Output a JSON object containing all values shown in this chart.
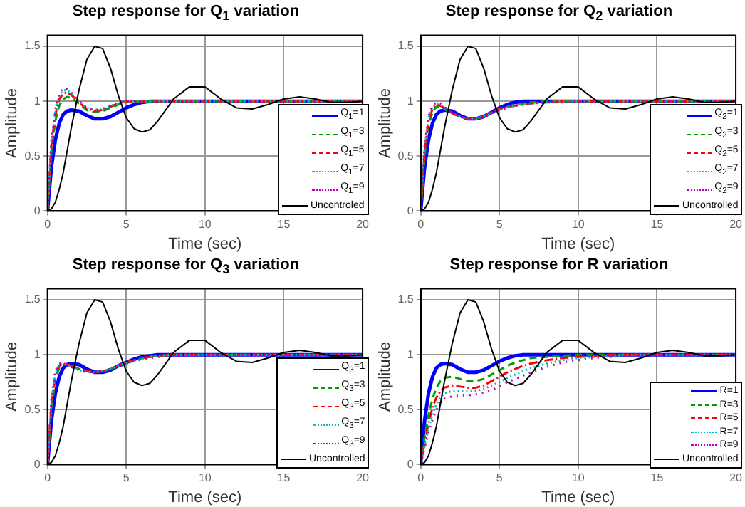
{
  "chart_data": [
    {
      "type": "line",
      "title": "Step response for Q$_{1}$ variation",
      "xlabel": "Time (sec)",
      "ylabel": "Amplitude",
      "x": [
        0,
        0.25,
        0.5,
        0.75,
        1,
        1.25,
        1.5,
        2,
        2.5,
        3,
        3.5,
        4,
        4.5,
        5,
        5.5,
        6,
        6.5,
        7,
        8,
        9,
        10,
        11,
        12,
        13,
        14,
        15,
        16,
        17,
        18,
        19,
        20
      ],
      "xlim": [
        0,
        20
      ],
      "xticks": [
        0,
        5,
        10,
        15,
        20
      ],
      "ylim": [
        0,
        1.6
      ],
      "yticks": [
        0,
        0.5,
        1,
        1.5
      ],
      "grid": true,
      "legend": "bottom right",
      "marker": "none",
      "series": [
        {
          "name": "Q$_{1}$=1",
          "color": "#0000ff",
          "line_style": "solid",
          "values": [
            0,
            0.4,
            0.65,
            0.8,
            0.88,
            0.91,
            0.92,
            0.91,
            0.87,
            0.84,
            0.84,
            0.86,
            0.9,
            0.94,
            0.97,
            0.99,
            1,
            1,
            1,
            1,
            1,
            1,
            1,
            1,
            1,
            1,
            1,
            1,
            1,
            1,
            1
          ]
        },
        {
          "name": "Q$_{1}$=3",
          "color": "#00a000",
          "line_style": "dashed",
          "values": [
            0,
            0.55,
            0.82,
            0.96,
            1.02,
            1.04,
            1.03,
            0.98,
            0.92,
            0.9,
            0.91,
            0.94,
            0.97,
            0.99,
            1,
            1,
            1,
            1,
            1,
            1,
            1,
            1,
            1,
            1,
            1,
            1,
            1,
            1,
            1,
            1,
            1
          ]
        },
        {
          "name": "Q$_{1}$=5",
          "color": "#ff0000",
          "line_style": "dashdot",
          "values": [
            0,
            0.6,
            0.88,
            1.02,
            1.07,
            1.08,
            1.06,
            0.99,
            0.93,
            0.91,
            0.92,
            0.95,
            0.98,
            1,
            1,
            1,
            1,
            1,
            1,
            1,
            1,
            1,
            1,
            1,
            1,
            1,
            1,
            1,
            1,
            1,
            1
          ]
        },
        {
          "name": "Q$_{1}$=7",
          "color": "#00bfbf",
          "line_style": "dotted",
          "values": [
            0,
            0.63,
            0.91,
            1.05,
            1.1,
            1.1,
            1.07,
            1,
            0.94,
            0.92,
            0.93,
            0.96,
            0.98,
            1,
            1,
            1,
            1,
            1,
            1,
            1,
            1,
            1,
            1,
            1,
            1,
            1,
            1,
            1,
            1,
            1,
            1
          ]
        },
        {
          "name": "Q$_{1}$=9",
          "color": "#bf00bf",
          "line_style": "dotted",
          "values": [
            0,
            0.65,
            0.93,
            1.07,
            1.12,
            1.11,
            1.08,
            1,
            0.94,
            0.92,
            0.93,
            0.96,
            0.99,
            1,
            1,
            1,
            1,
            1,
            1,
            1,
            1,
            1,
            1,
            1,
            1,
            1,
            1,
            1,
            1,
            1,
            1
          ]
        },
        {
          "name": "Uncontroled",
          "color": "#000000",
          "line_style": "solid",
          "values": [
            0,
            0.02,
            0.08,
            0.2,
            0.35,
            0.55,
            0.75,
            1.1,
            1.38,
            1.5,
            1.48,
            1.3,
            1.05,
            0.85,
            0.75,
            0.72,
            0.74,
            0.82,
            1.02,
            1.13,
            1.13,
            1.02,
            0.94,
            0.93,
            0.97,
            1.02,
            1.04,
            1.02,
            0.99,
            0.99,
            1
          ]
        }
      ]
    },
    {
      "type": "line",
      "title": "Step response for Q$_{2}$ variation",
      "xlabel": "Time (sec)",
      "ylabel": "Amplitude",
      "x": [
        0,
        0.25,
        0.5,
        0.75,
        1,
        1.25,
        1.5,
        2,
        2.5,
        3,
        3.5,
        4,
        4.5,
        5,
        5.5,
        6,
        6.5,
        7,
        8,
        9,
        10,
        11,
        12,
        13,
        14,
        15,
        16,
        17,
        18,
        19,
        20
      ],
      "xlim": [
        0,
        20
      ],
      "xticks": [
        0,
        5,
        10,
        15,
        20
      ],
      "ylim": [
        0,
        1.6
      ],
      "yticks": [
        0,
        0.5,
        1,
        1.5
      ],
      "grid": true,
      "legend": "bottom right",
      "marker": "none",
      "series": [
        {
          "name": "Q$_{2}$=1",
          "color": "#0000ff",
          "line_style": "solid",
          "values": [
            0,
            0.4,
            0.65,
            0.8,
            0.88,
            0.91,
            0.92,
            0.91,
            0.87,
            0.84,
            0.84,
            0.86,
            0.9,
            0.94,
            0.97,
            0.99,
            1,
            1,
            1,
            1,
            1,
            1,
            1,
            1,
            1,
            1,
            1,
            1,
            1,
            1,
            1
          ]
        },
        {
          "name": "Q$_{2}$=3",
          "color": "#00a000",
          "line_style": "dashed",
          "values": [
            0,
            0.5,
            0.78,
            0.9,
            0.95,
            0.95,
            0.93,
            0.89,
            0.86,
            0.84,
            0.84,
            0.86,
            0.9,
            0.93,
            0.95,
            0.97,
            0.98,
            0.99,
            1,
            1,
            1,
            1,
            1,
            1,
            1,
            1,
            1,
            1,
            1,
            1,
            1
          ]
        },
        {
          "name": "Q$_{2}$=5",
          "color": "#ff0000",
          "line_style": "dashdot",
          "values": [
            0,
            0.55,
            0.82,
            0.93,
            0.97,
            0.96,
            0.94,
            0.89,
            0.86,
            0.84,
            0.84,
            0.86,
            0.9,
            0.93,
            0.95,
            0.96,
            0.97,
            0.98,
            0.99,
            1,
            1,
            1,
            1,
            1,
            1,
            1,
            1,
            1,
            1,
            1,
            1
          ]
        },
        {
          "name": "Q$_{2}$=7",
          "color": "#00bfbf",
          "line_style": "dotted",
          "values": [
            0,
            0.58,
            0.85,
            0.95,
            0.98,
            0.97,
            0.94,
            0.89,
            0.86,
            0.84,
            0.84,
            0.86,
            0.89,
            0.92,
            0.94,
            0.96,
            0.97,
            0.98,
            0.99,
            1,
            1,
            1,
            1,
            1,
            1,
            1,
            1,
            1,
            1,
            1,
            1
          ]
        },
        {
          "name": "Q$_{2}$=9",
          "color": "#bf00bf",
          "line_style": "dotted",
          "values": [
            0,
            0.6,
            0.87,
            0.96,
            0.99,
            0.98,
            0.95,
            0.89,
            0.86,
            0.84,
            0.84,
            0.85,
            0.89,
            0.92,
            0.94,
            0.96,
            0.97,
            0.98,
            0.99,
            0.99,
            1,
            1,
            1,
            1,
            1,
            1,
            1,
            1,
            1,
            1,
            1
          ]
        },
        {
          "name": "Uncontrolled",
          "color": "#000000",
          "line_style": "solid",
          "values": [
            0,
            0.02,
            0.08,
            0.2,
            0.35,
            0.55,
            0.75,
            1.1,
            1.38,
            1.5,
            1.48,
            1.3,
            1.05,
            0.85,
            0.75,
            0.72,
            0.74,
            0.82,
            1.02,
            1.13,
            1.13,
            1.02,
            0.94,
            0.93,
            0.97,
            1.02,
            1.04,
            1.02,
            0.99,
            0.99,
            1
          ]
        }
      ]
    },
    {
      "type": "line",
      "title": "Step response for Q$_{3}$ variation",
      "xlabel": "Time (sec)",
      "ylabel": "Amplitude",
      "x": [
        0,
        0.25,
        0.5,
        0.75,
        1,
        1.25,
        1.5,
        2,
        2.5,
        3,
        3.5,
        4,
        4.5,
        5,
        5.5,
        6,
        6.5,
        7,
        8,
        9,
        10,
        11,
        12,
        13,
        14,
        15,
        16,
        17,
        18,
        19,
        20
      ],
      "xlim": [
        0,
        20
      ],
      "xticks": [
        0,
        5,
        10,
        15,
        20
      ],
      "ylim": [
        0,
        1.6
      ],
      "yticks": [
        0,
        0.5,
        1,
        1.5
      ],
      "grid": true,
      "legend": "bottom right",
      "marker": "none",
      "series": [
        {
          "name": "Q$_{3}$=1",
          "color": "#0000ff",
          "line_style": "solid",
          "values": [
            0,
            0.4,
            0.65,
            0.8,
            0.88,
            0.91,
            0.92,
            0.91,
            0.87,
            0.84,
            0.84,
            0.86,
            0.9,
            0.93,
            0.96,
            0.98,
            0.99,
            1,
            1,
            1,
            1,
            1,
            1,
            1,
            1,
            1,
            1,
            1,
            1,
            1,
            1
          ]
        },
        {
          "name": "Q$_{3}$=3",
          "color": "#00a000",
          "line_style": "dashed",
          "values": [
            0,
            0.5,
            0.78,
            0.88,
            0.91,
            0.91,
            0.9,
            0.87,
            0.85,
            0.84,
            0.85,
            0.87,
            0.9,
            0.93,
            0.95,
            0.97,
            0.98,
            0.99,
            1,
            1,
            1,
            1,
            1,
            1,
            1,
            1,
            1,
            1,
            1,
            1,
            1
          ]
        },
        {
          "name": "Q$_{3}$=5",
          "color": "#ff0000",
          "line_style": "dashdot",
          "values": [
            0,
            0.55,
            0.82,
            0.9,
            0.92,
            0.91,
            0.9,
            0.87,
            0.85,
            0.84,
            0.85,
            0.87,
            0.9,
            0.93,
            0.95,
            0.97,
            0.98,
            0.99,
            1,
            1,
            1,
            1,
            1,
            1,
            1,
            1,
            1,
            1,
            1,
            1,
            1
          ]
        },
        {
          "name": "Q$_{3}$=7",
          "color": "#00bfbf",
          "line_style": "dotted",
          "values": [
            0,
            0.58,
            0.84,
            0.91,
            0.92,
            0.91,
            0.89,
            0.86,
            0.84,
            0.84,
            0.85,
            0.87,
            0.9,
            0.92,
            0.94,
            0.96,
            0.98,
            0.99,
            1,
            1,
            1,
            1,
            1,
            1,
            1,
            1,
            1,
            1,
            1,
            1,
            1
          ]
        },
        {
          "name": "Q$_{3}$=9",
          "color": "#bf00bf",
          "line_style": "dotted",
          "values": [
            0,
            0.6,
            0.86,
            0.92,
            0.92,
            0.91,
            0.89,
            0.86,
            0.84,
            0.84,
            0.85,
            0.87,
            0.89,
            0.92,
            0.94,
            0.96,
            0.97,
            0.98,
            0.99,
            1,
            1,
            1,
            1,
            1,
            1,
            1,
            1,
            1,
            1,
            1,
            1
          ]
        },
        {
          "name": "Uncontrolled",
          "color": "#000000",
          "line_style": "solid",
          "values": [
            0,
            0.02,
            0.08,
            0.2,
            0.35,
            0.55,
            0.75,
            1.1,
            1.38,
            1.5,
            1.48,
            1.3,
            1.05,
            0.85,
            0.75,
            0.72,
            0.74,
            0.82,
            1.02,
            1.13,
            1.13,
            1.02,
            0.94,
            0.93,
            0.97,
            1.02,
            1.04,
            1.02,
            0.99,
            0.99,
            1
          ]
        }
      ]
    },
    {
      "type": "line",
      "title": "Step response for R variation",
      "xlabel": "Time (sec)",
      "ylabel": "Amplitude",
      "x": [
        0,
        0.25,
        0.5,
        0.75,
        1,
        1.25,
        1.5,
        2,
        2.5,
        3,
        3.5,
        4,
        4.5,
        5,
        5.5,
        6,
        6.5,
        7,
        8,
        9,
        10,
        11,
        12,
        13,
        14,
        15,
        16,
        17,
        18,
        19,
        20
      ],
      "xlim": [
        0,
        20
      ],
      "xticks": [
        0,
        5,
        10,
        15,
        20
      ],
      "ylim": [
        0,
        1.6
      ],
      "yticks": [
        0,
        0.5,
        1,
        1.5
      ],
      "grid": true,
      "legend": "bottom right",
      "marker": "none",
      "series": [
        {
          "name": "R=1",
          "color": "#0000ff",
          "line_style": "solid",
          "values": [
            0,
            0.4,
            0.65,
            0.8,
            0.88,
            0.91,
            0.92,
            0.91,
            0.87,
            0.84,
            0.84,
            0.86,
            0.9,
            0.94,
            0.97,
            0.99,
            1,
            1,
            1,
            1,
            1,
            1,
            1,
            1,
            1,
            1,
            1,
            1,
            1,
            1,
            1
          ]
        },
        {
          "name": "R=3",
          "color": "#00a000",
          "line_style": "dashed",
          "values": [
            0,
            0.25,
            0.45,
            0.6,
            0.7,
            0.76,
            0.79,
            0.8,
            0.78,
            0.76,
            0.76,
            0.78,
            0.82,
            0.86,
            0.9,
            0.93,
            0.95,
            0.97,
            0.98,
            0.99,
            1,
            1,
            1,
            1,
            1,
            1,
            1,
            1,
            1,
            1,
            1
          ]
        },
        {
          "name": "R=5",
          "color": "#ff0000",
          "line_style": "dashdot",
          "values": [
            0,
            0.2,
            0.38,
            0.52,
            0.61,
            0.67,
            0.7,
            0.72,
            0.71,
            0.7,
            0.7,
            0.72,
            0.76,
            0.8,
            0.84,
            0.87,
            0.9,
            0.92,
            0.95,
            0.97,
            0.98,
            0.99,
            1,
            1,
            1,
            1,
            1,
            1,
            1,
            1,
            1
          ]
        },
        {
          "name": "R=7",
          "color": "#00bfbf",
          "line_style": "dotted",
          "values": [
            0,
            0.17,
            0.33,
            0.46,
            0.55,
            0.61,
            0.65,
            0.67,
            0.67,
            0.67,
            0.67,
            0.69,
            0.72,
            0.75,
            0.79,
            0.82,
            0.85,
            0.88,
            0.92,
            0.95,
            0.97,
            0.98,
            0.99,
            1,
            1,
            1,
            1,
            1,
            1,
            1,
            1
          ]
        },
        {
          "name": "R=9",
          "color": "#bf00bf",
          "line_style": "dotted",
          "values": [
            0,
            0.15,
            0.29,
            0.41,
            0.5,
            0.56,
            0.6,
            0.62,
            0.63,
            0.63,
            0.64,
            0.65,
            0.68,
            0.71,
            0.75,
            0.78,
            0.81,
            0.84,
            0.89,
            0.93,
            0.95,
            0.97,
            0.98,
            0.99,
            1,
            1,
            1,
            1,
            1,
            1,
            1
          ]
        },
        {
          "name": "Uncontrolled",
          "color": "#000000",
          "line_style": "solid",
          "values": [
            0,
            0.02,
            0.08,
            0.2,
            0.35,
            0.55,
            0.75,
            1.1,
            1.38,
            1.5,
            1.48,
            1.3,
            1.05,
            0.85,
            0.75,
            0.72,
            0.74,
            0.82,
            1.02,
            1.13,
            1.13,
            1.02,
            0.94,
            0.93,
            0.97,
            1.02,
            1.04,
            1.02,
            0.99,
            0.99,
            1
          ]
        }
      ]
    }
  ]
}
